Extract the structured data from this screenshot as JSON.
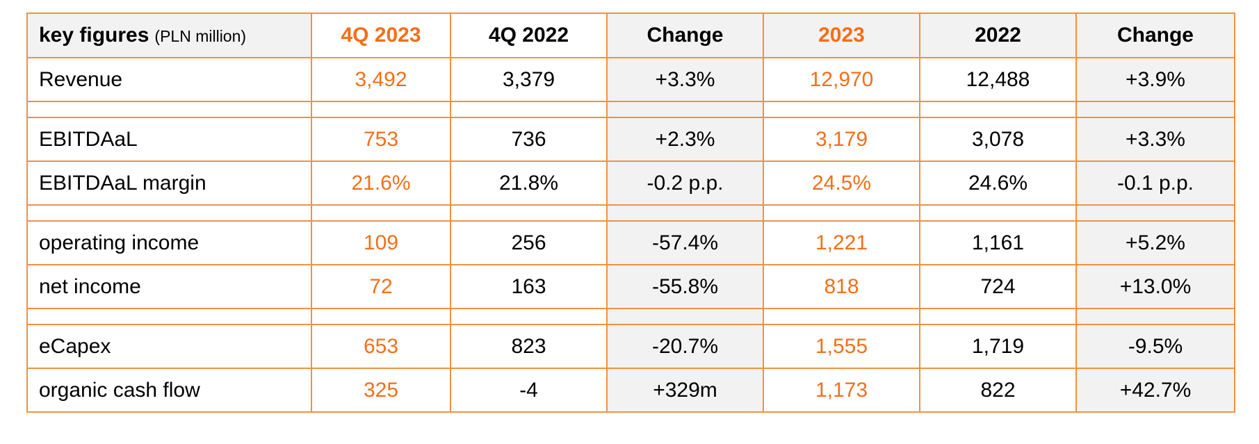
{
  "colors": {
    "accent": "#f26f1a",
    "border": "#f0923e",
    "shade": "#f2f2f2"
  },
  "header": {
    "label": "key figures",
    "unit": "(PLN million)",
    "columns": [
      "4Q 2023",
      "4Q 2022",
      "Change",
      "2023",
      "2022",
      "Change"
    ]
  },
  "rows": [
    {
      "label": "Revenue",
      "values": [
        "3,492",
        "3,379",
        "+3.3%",
        "12,970",
        "12,488",
        "+3.9%"
      ]
    },
    {
      "label": "EBITDAaL",
      "values": [
        "753",
        "736",
        "+2.3%",
        "3,179",
        "3,078",
        "+3.3%"
      ]
    },
    {
      "label": "EBITDAaL margin",
      "values": [
        "21.6%",
        "21.8%",
        "-0.2 p.p.",
        "24.5%",
        "24.6%",
        "-0.1 p.p."
      ]
    },
    {
      "label": "operating income",
      "values": [
        "109",
        "256",
        "-57.4%",
        "1,221",
        "1,161",
        "+5.2%"
      ]
    },
    {
      "label": "net income",
      "values": [
        "72",
        "163",
        "-55.8%",
        "818",
        "724",
        "+13.0%"
      ]
    },
    {
      "label": "eCapex",
      "values": [
        "653",
        "823",
        "-20.7%",
        "1,555",
        "1,719",
        "-9.5%"
      ]
    },
    {
      "label": "organic cash flow",
      "values": [
        "325",
        "-4",
        "+329m",
        "1,173",
        "822",
        "+42.7%"
      ]
    }
  ]
}
